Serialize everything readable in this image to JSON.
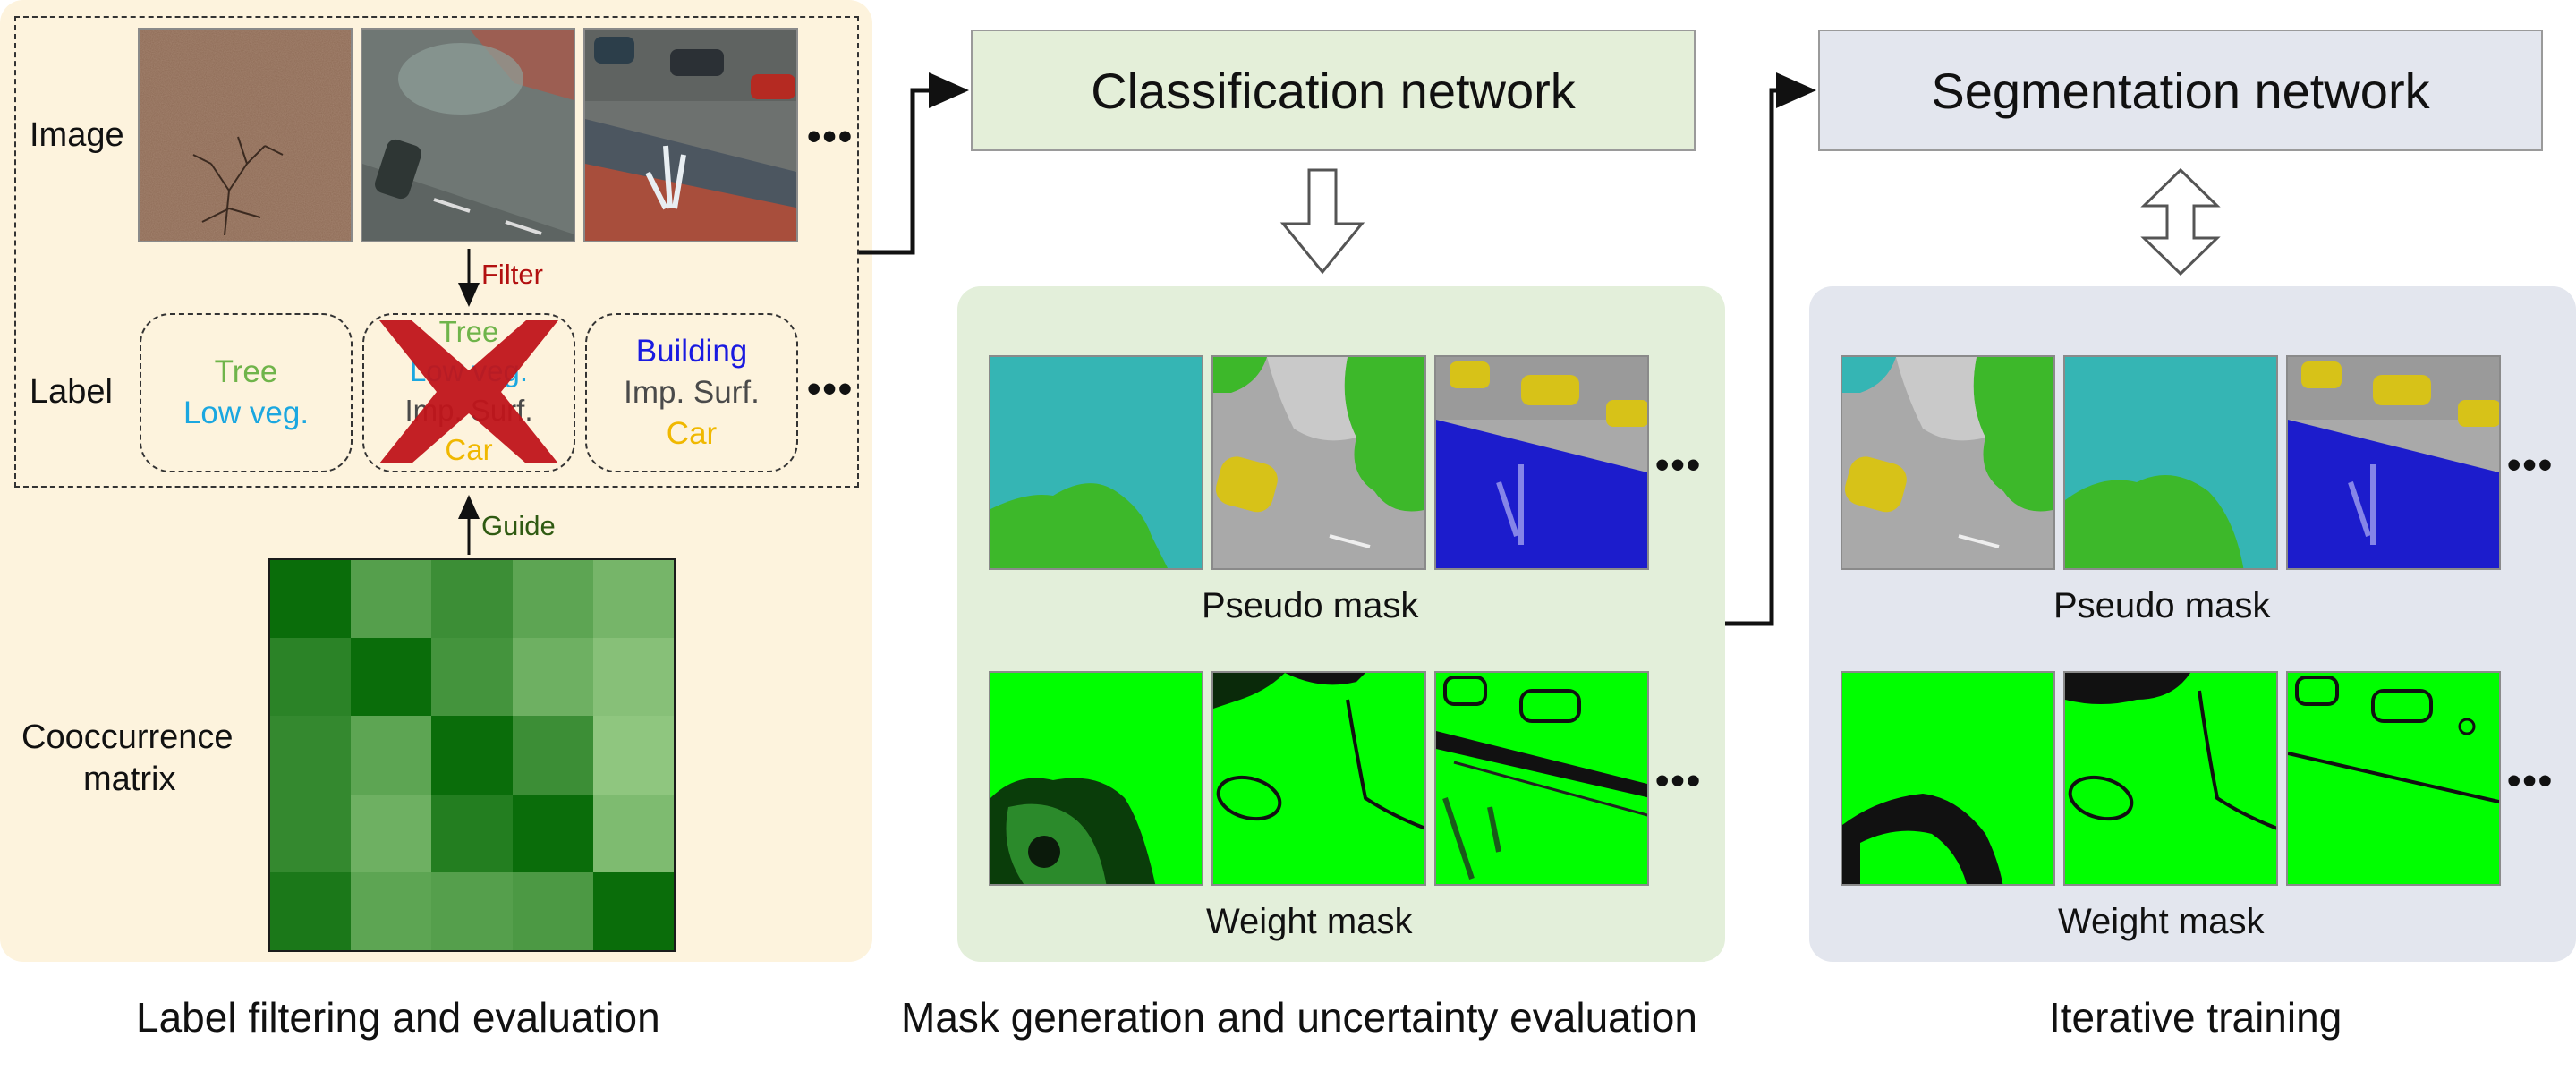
{
  "stages": {
    "filtering": {
      "caption": "Label filtering and evaluation",
      "row_image": "Image",
      "row_label": "Label",
      "filter": "Filter",
      "guide": "Guide",
      "matrix_label": [
        "Cooccurrence",
        "matrix"
      ],
      "label_sets": [
        {
          "lines": [
            {
              "text": "Tree",
              "color": "#6fb44a"
            },
            {
              "text": "Low veg.",
              "color": "#1ba7e0"
            }
          ],
          "rejected": false
        },
        {
          "lines": [
            {
              "text": "Tree",
              "color": "#6fb44a"
            },
            {
              "text": "Low veg.",
              "color": "#1ba7e0"
            },
            {
              "text": "Imp. Surf.",
              "color": "#4a4a4a"
            },
            {
              "text": "Car",
              "color": "#f0b800"
            }
          ],
          "rejected": true
        },
        {
          "lines": [
            {
              "text": "Building",
              "color": "#1a1ae0"
            },
            {
              "text": "Imp. Surf.",
              "color": "#4a4a4a"
            },
            {
              "text": "Car",
              "color": "#f0b800"
            }
          ],
          "rejected": false
        }
      ],
      "ellipsis": "•••"
    },
    "mask_generation": {
      "caption": "Mask generation and uncertainty evaluation",
      "network": "Classification network",
      "pseudo_mask": "Pseudo mask",
      "weight_mask": "Weight mask",
      "ellipsis": "•••"
    },
    "iterative": {
      "caption": "Iterative training",
      "network": "Segmentation network",
      "pseudo_mask": "Pseudo mask",
      "weight_mask": "Weight mask",
      "ellipsis": "•••"
    }
  },
  "cooccurrence_matrix": [
    [
      1.0,
      0.55,
      0.7,
      0.5,
      0.35
    ],
    [
      0.8,
      1.0,
      0.65,
      0.4,
      0.25
    ],
    [
      0.75,
      0.5,
      1.0,
      0.7,
      0.2
    ],
    [
      0.75,
      0.4,
      0.85,
      1.0,
      0.3
    ],
    [
      0.9,
      0.5,
      0.55,
      0.6,
      1.0
    ]
  ],
  "colors": {
    "panel_filter": "#fdf3dd",
    "panel_mask": "#e3efda",
    "panel_iter": "#e3e6ee",
    "class_box": "#e4efd9",
    "seg_box": "#e3e6ee",
    "matrix_dark": "#0a6d0a",
    "matrix_light": "#b0dc9c",
    "veg": "#3db82a",
    "weight_green": "#00ff00",
    "low_veg": "#35b5b4",
    "car": "#d7c218",
    "building": "#1c1ccc",
    "road": "#a9a9a9",
    "cross": "#c0141a",
    "filter_text": "#b21010",
    "guide_text": "#2f5a12"
  }
}
